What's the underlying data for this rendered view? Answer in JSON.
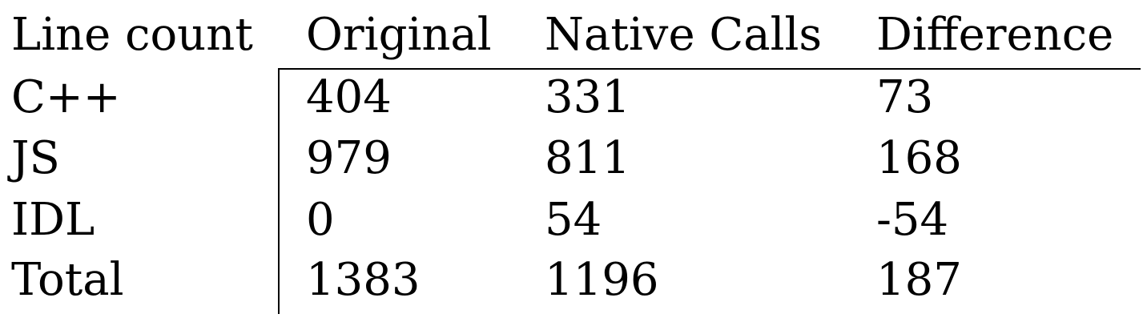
{
  "table": {
    "headers": [
      "Line count",
      "Original",
      "Native Calls",
      "Difference"
    ],
    "rows": [
      [
        "C++",
        "404",
        "331",
        "73"
      ],
      [
        "JS",
        "979",
        "811",
        "168"
      ],
      [
        "IDL",
        "0",
        "54",
        "-54"
      ],
      [
        "Total",
        "1383",
        "1196",
        "187"
      ]
    ]
  }
}
